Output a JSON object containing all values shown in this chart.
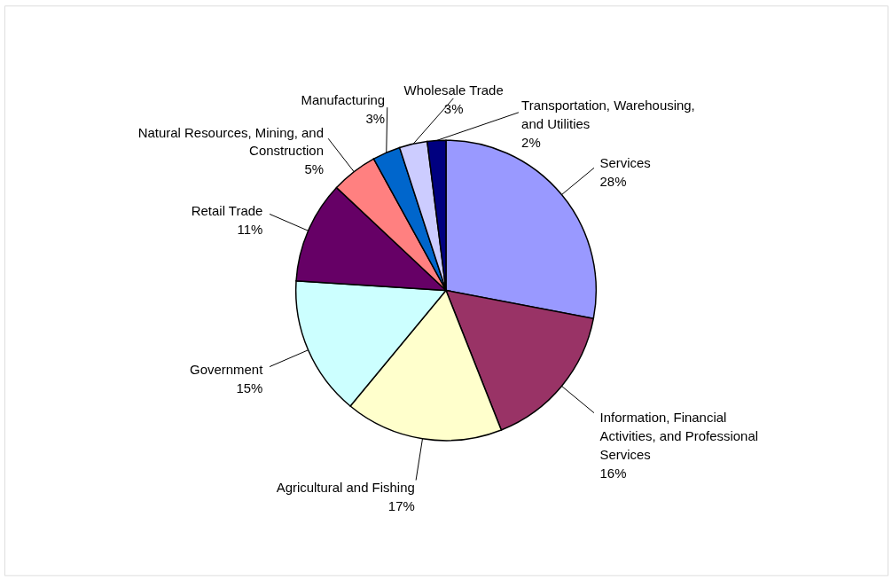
{
  "chart_data": {
    "type": "pie",
    "categories": [
      "Services",
      "Information, Financial Activities, and Professional Services",
      "Agricultural and Fishing",
      "Government",
      "Retail Trade",
      "Natural Resources, Mining, and Construction",
      "Manufacturing",
      "Wholesale Trade",
      "Transportation, Warehousing, and Utilities"
    ],
    "values": [
      28,
      16,
      17,
      15,
      11,
      5,
      3,
      3,
      2
    ],
    "value_labels": [
      "28%",
      "16%",
      "17%",
      "15%",
      "11%",
      "5%",
      "3%",
      "3%",
      "2%"
    ],
    "colors": [
      "#9999ff",
      "#993366",
      "#ffffcc",
      "#ccffff",
      "#660066",
      "#ff8080",
      "#0066cc",
      "#ccccff",
      "#000080"
    ],
    "legend": false
  }
}
